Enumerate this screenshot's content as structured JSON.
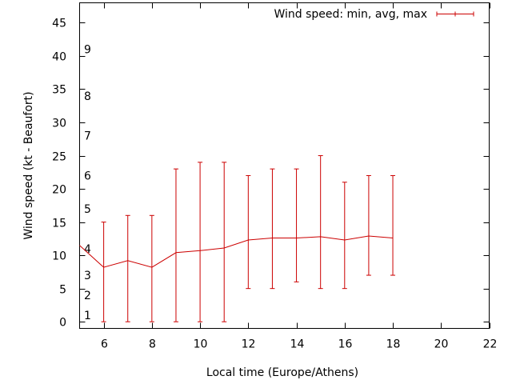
{
  "chart_data": {
    "type": "line",
    "title": "",
    "xlabel": "Local time (Europe/Athens)",
    "ylabel": "Wind speed (kt - Beaufort)",
    "xlim": [
      5,
      22
    ],
    "ylim": [
      -1,
      48
    ],
    "xticks": [
      6,
      8,
      10,
      12,
      14,
      16,
      18,
      20,
      22
    ],
    "yticks": [
      0,
      5,
      10,
      15,
      20,
      25,
      30,
      35,
      40,
      45
    ],
    "beaufort_marks": [
      {
        "label": "1",
        "value": 1
      },
      {
        "label": "2",
        "value": 4
      },
      {
        "label": "3",
        "value": 7
      },
      {
        "label": "4",
        "value": 11
      },
      {
        "label": "5",
        "value": 17
      },
      {
        "label": "6",
        "value": 22
      },
      {
        "label": "7",
        "value": 28
      },
      {
        "label": "8",
        "value": 34
      },
      {
        "label": "9",
        "value": 41
      }
    ],
    "series": [
      {
        "name": "Wind speed: min, avg, max",
        "color": "#cc0000",
        "x": [
          5,
          6,
          7,
          8,
          9,
          10,
          11,
          12,
          13,
          14,
          15,
          16,
          17,
          18
        ],
        "avg": [
          11.5,
          8.2,
          9.2,
          8.2,
          10.4,
          10.7,
          11.1,
          12.3,
          12.6,
          12.6,
          12.8,
          12.3,
          12.9,
          12.6
        ],
        "min": [
          11.5,
          0,
          0,
          0,
          0,
          0,
          0,
          5,
          5,
          6,
          5,
          5,
          7,
          7
        ],
        "max": [
          11.5,
          15,
          16,
          16,
          23,
          24,
          24,
          22,
          23,
          23,
          25,
          21,
          22,
          22
        ]
      }
    ],
    "legend": "top-right",
    "grid": false
  }
}
